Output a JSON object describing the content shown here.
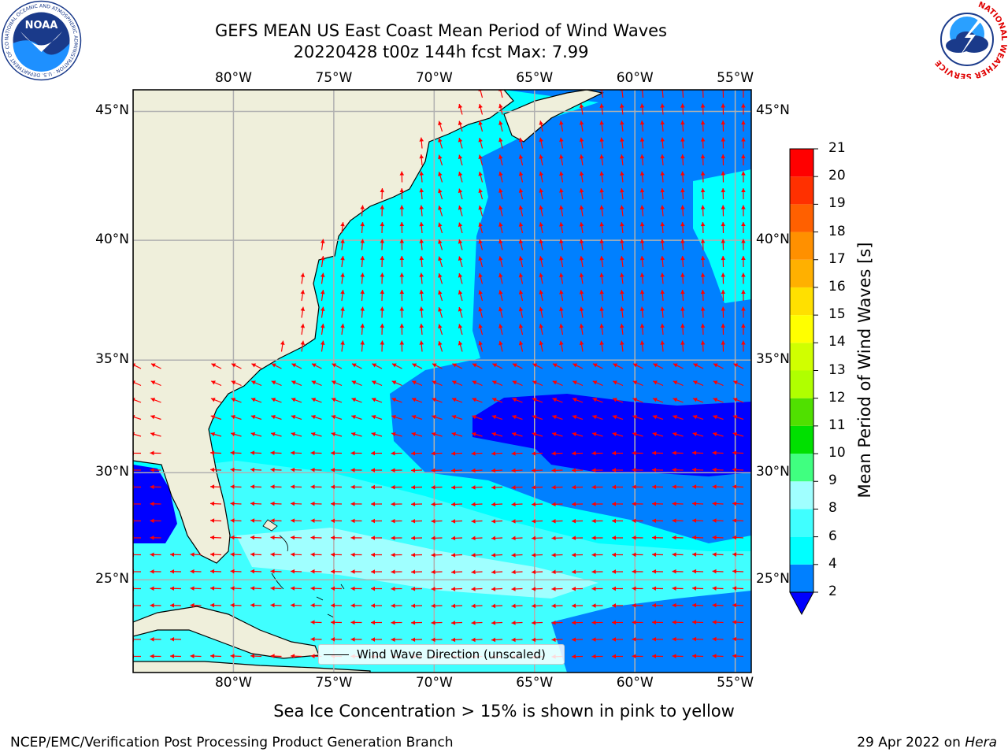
{
  "header": {
    "title_line1": "GEFS MEAN US East Coast Mean Period of Wind Waves",
    "title_line2": "20220428 t00z 144h fcst   Max: 7.99"
  },
  "logos": {
    "left": {
      "name": "noaa-logo",
      "text": "NOAA",
      "ring_text": "NATIONAL OCEANIC AND ATMOSPHERIC ADMINISTRATION · U.S. DEPARTMENT OF COMMERCE"
    },
    "right": {
      "name": "nws-logo",
      "ring_text": "NATIONAL WEATHER SERVICE"
    }
  },
  "map": {
    "lon_ticks": [
      "80°W",
      "75°W",
      "70°W",
      "65°W",
      "60°W",
      "55°W"
    ],
    "lat_ticks": [
      "45°N",
      "40°N",
      "35°N",
      "30°N",
      "25°N"
    ],
    "lon_values": [
      -80,
      -75,
      -70,
      -65,
      -60,
      -55
    ],
    "lat_values": [
      45,
      40,
      35,
      30,
      25
    ],
    "extent": {
      "lon": [
        -85,
        -54.2
      ],
      "lat": [
        20.5,
        45.8
      ]
    },
    "arrow_color": "#ff0000",
    "land_color": "#efefdb",
    "legend_label": "Wind Wave Direction (unscaled)"
  },
  "colorbar": {
    "label": "Mean Period of Wind Waves [s]",
    "ticks": [
      "21",
      "20",
      "19",
      "18",
      "17",
      "16",
      "15",
      "14",
      "13",
      "12",
      "11",
      "10",
      "9",
      "8",
      "6",
      "4",
      "2"
    ],
    "tick_values": [
      21,
      20,
      19,
      18,
      17,
      16,
      15,
      14,
      13,
      12,
      11,
      10,
      9,
      8,
      6,
      4,
      2
    ],
    "colors": [
      {
        "from": 2,
        "to": 4,
        "color": "#0080ff"
      },
      {
        "from": 4,
        "to": 6,
        "color": "#00ffff"
      },
      {
        "from": 6,
        "to": 8,
        "color": "#40ffff"
      },
      {
        "from": 8,
        "to": 9,
        "color": "#a0ffff"
      },
      {
        "from": 9,
        "to": 10,
        "color": "#40ff80"
      },
      {
        "from": 10,
        "to": 11,
        "color": "#00e000"
      },
      {
        "from": 11,
        "to": 12,
        "color": "#50e000"
      },
      {
        "from": 12,
        "to": 13,
        "color": "#b0ff00"
      },
      {
        "from": 13,
        "to": 14,
        "color": "#d0ff00"
      },
      {
        "from": 14,
        "to": 15,
        "color": "#ffff00"
      },
      {
        "from": 15,
        "to": 16,
        "color": "#ffe000"
      },
      {
        "from": 16,
        "to": 17,
        "color": "#ffb000"
      },
      {
        "from": 17,
        "to": 18,
        "color": "#ff9000"
      },
      {
        "from": 18,
        "to": 19,
        "color": "#ff6000"
      },
      {
        "from": 19,
        "to": 20,
        "color": "#ff3000"
      },
      {
        "from": 20,
        "to": 21,
        "color": "#ff0000"
      }
    ],
    "under_color": "#0000ff"
  },
  "notes": {
    "sea_ice": "Sea Ice Concentration > 15% is shown in pink to yellow"
  },
  "footer": {
    "left": "NCEP/EMC/Verification Post Processing Product Generation Branch",
    "right_prefix": "29 Apr 2022 on ",
    "right_system": "Hera"
  }
}
